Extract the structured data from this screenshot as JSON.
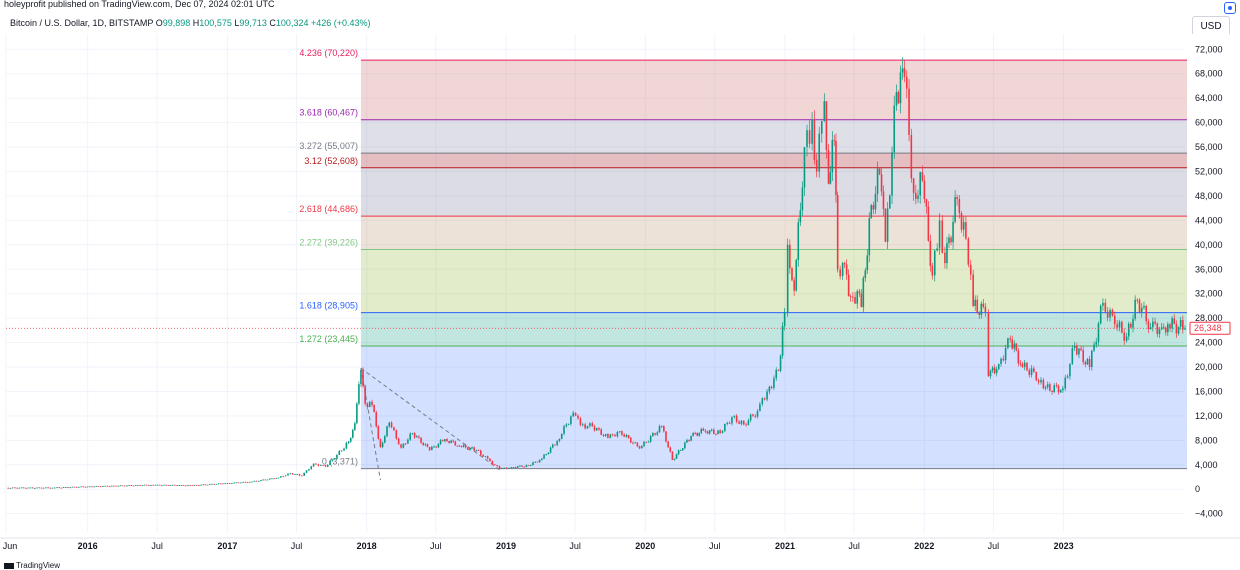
{
  "header": {
    "published": "holeyprofit published on TradingView.com, Dec 07, 2024 02:01 UTC",
    "currency": "USD"
  },
  "legend": {
    "symbol": "Bitcoin / U.S. Dollar, 1D, BITSTAMP",
    "o_label": "O",
    "o": "99,898",
    "h_label": "H",
    "h": "100,575",
    "l_label": "L",
    "l": "99,713",
    "c_label": "C",
    "c": "100,324",
    "change": "+426 (+0.43%)"
  },
  "footer": {
    "brand": "TradingView"
  },
  "colors": {
    "up": "#089981",
    "down": "#f23645",
    "grid": "#f0f3fa",
    "axis_text": "#131722"
  },
  "chart_data": {
    "type": "line",
    "title": "Bitcoin / U.S. Dollar, 1D, BITSTAMP",
    "y_axis": {
      "side": "right",
      "ticks": [
        72000,
        68000,
        64000,
        60000,
        56000,
        52000,
        48000,
        44000,
        40000,
        36000,
        32000,
        28000,
        24000,
        20000,
        16000,
        12000,
        8000,
        4000,
        0,
        -4000
      ],
      "tick_labels": [
        "72,000",
        "68,000",
        "64,000",
        "60,000",
        "56,000",
        "52,000",
        "48,000",
        "44,000",
        "40,000",
        "36,000",
        "32,000",
        "28,000",
        "24,000",
        "20,000",
        "16,000",
        "12,000",
        "8,000",
        "4,000",
        "0",
        "−4,000"
      ],
      "ylim": [
        -7000,
        74500
      ]
    },
    "x_axis": {
      "ticks": [
        "2015-06-01",
        "2016-01-01",
        "2016-07-01",
        "2017-01-01",
        "2017-07-01",
        "2018-01-01",
        "2018-07-01",
        "2019-01-01",
        "2019-07-01",
        "2020-01-01",
        "2020-07-01",
        "2021-01-01",
        "2021-07-01",
        "2022-01-01",
        "2022-07-01",
        "2023-01-01"
      ],
      "tick_labels": [
        "Jun",
        "2016",
        "Jul",
        "2017",
        "Jul",
        "2018",
        "Jul",
        "2019",
        "Jul",
        "2020",
        "Jul",
        "2021",
        "Jul",
        "2022",
        "Jul",
        "2023"
      ],
      "xlim": [
        "2015-06-01",
        "2023-11-15"
      ]
    },
    "last_price": {
      "value": 26348,
      "label": "26,348"
    },
    "fib_levels": [
      {
        "label": "0 (3,371)",
        "value": 3371,
        "color": "#787b86",
        "fill": "rgba(41,98,255,0.20)"
      },
      {
        "label": "1.272 (23,445)",
        "value": 23445,
        "color": "#4caf50",
        "fill": "rgba(8,153,129,0.25)"
      },
      {
        "label": "1.618 (28,905)",
        "value": 28905,
        "color": "#2962ff",
        "fill": "rgba(160,190,80,0.30)"
      },
      {
        "label": "2.272 (39,226)",
        "value": 39226,
        "color": "#81c784",
        "fill": "rgba(190,150,110,0.28)"
      },
      {
        "label": "2.618 (44,686)",
        "value": 44686,
        "color": "#f23645",
        "fill": "rgba(140,140,170,0.30)"
      },
      {
        "label": "3.12 (52,608)",
        "value": 52608,
        "color": "#b71c1c",
        "fill": "rgba(180,70,80,0.35)"
      },
      {
        "label": "3.272 (55,007)",
        "value": 55007,
        "color": "#787b86",
        "fill": "rgba(150,150,180,0.30)"
      },
      {
        "label": "3.618 (60,467)",
        "value": 60467,
        "color": "#9c27b0",
        "fill": "rgba(210,120,120,0.30)"
      },
      {
        "label": "4.236 (70,220)",
        "value": 70220,
        "color": "#e91e63",
        "fill": null
      }
    ],
    "fib_range": {
      "x_start": "2017-12-17",
      "x_end": "2023-11-15"
    },
    "trend_line": {
      "from": {
        "x": "2017-12-17",
        "y": 19800
      },
      "to": {
        "x": "2018-12-15",
        "y": 3200
      }
    },
    "trend_line_2": {
      "from": {
        "x": "2017-12-17",
        "y": 19800
      },
      "to": {
        "x": "2018-02-06",
        "y": 1500
      }
    },
    "series": [
      {
        "values": [
          {
            "x": "2015-06-01",
            "y": 230
          },
          {
            "x": "2015-10-01",
            "y": 240
          },
          {
            "x": "2016-01-01",
            "y": 430
          },
          {
            "x": "2016-06-15",
            "y": 700
          },
          {
            "x": "2016-10-01",
            "y": 620
          },
          {
            "x": "2017-01-01",
            "y": 990
          },
          {
            "x": "2017-03-01",
            "y": 1200
          },
          {
            "x": "2017-05-15",
            "y": 1900
          },
          {
            "x": "2017-06-15",
            "y": 2600
          },
          {
            "x": "2017-07-15",
            "y": 2200
          },
          {
            "x": "2017-08-15",
            "y": 4200
          },
          {
            "x": "2017-09-15",
            "y": 3700
          },
          {
            "x": "2017-10-15",
            "y": 5600
          },
          {
            "x": "2017-11-15",
            "y": 7800
          },
          {
            "x": "2017-12-01",
            "y": 10800
          },
          {
            "x": "2017-12-17",
            "y": 19500
          },
          {
            "x": "2017-12-28",
            "y": 14000
          },
          {
            "x": "2018-01-15",
            "y": 13800
          },
          {
            "x": "2018-02-06",
            "y": 6900
          },
          {
            "x": "2018-03-01",
            "y": 10900
          },
          {
            "x": "2018-04-01",
            "y": 6800
          },
          {
            "x": "2018-05-01",
            "y": 9200
          },
          {
            "x": "2018-06-15",
            "y": 6400
          },
          {
            "x": "2018-07-25",
            "y": 8200
          },
          {
            "x": "2018-09-01",
            "y": 7100
          },
          {
            "x": "2018-10-15",
            "y": 6400
          },
          {
            "x": "2018-11-20",
            "y": 4600
          },
          {
            "x": "2018-12-15",
            "y": 3300
          },
          {
            "x": "2019-01-15",
            "y": 3600
          },
          {
            "x": "2019-03-01",
            "y": 3850
          },
          {
            "x": "2019-04-05",
            "y": 5000
          },
          {
            "x": "2019-05-15",
            "y": 7900
          },
          {
            "x": "2019-06-26",
            "y": 12500
          },
          {
            "x": "2019-07-15",
            "y": 10500
          },
          {
            "x": "2019-08-15",
            "y": 10300
          },
          {
            "x": "2019-09-25",
            "y": 8400
          },
          {
            "x": "2019-10-26",
            "y": 9500
          },
          {
            "x": "2019-12-17",
            "y": 6700
          },
          {
            "x": "2020-02-13",
            "y": 10300
          },
          {
            "x": "2020-03-12",
            "y": 4800
          },
          {
            "x": "2020-04-30",
            "y": 8700
          },
          {
            "x": "2020-06-01",
            "y": 9600
          },
          {
            "x": "2020-07-15",
            "y": 9200
          },
          {
            "x": "2020-08-15",
            "y": 11800
          },
          {
            "x": "2020-09-15",
            "y": 10600
          },
          {
            "x": "2020-10-21",
            "y": 12800
          },
          {
            "x": "2020-11-15",
            "y": 16000
          },
          {
            "x": "2020-12-15",
            "y": 19400
          },
          {
            "x": "2020-12-31",
            "y": 29000
          },
          {
            "x": "2021-01-08",
            "y": 40000
          },
          {
            "x": "2021-01-25",
            "y": 32500
          },
          {
            "x": "2021-02-21",
            "y": 56000
          },
          {
            "x": "2021-03-13",
            "y": 60500
          },
          {
            "x": "2021-03-25",
            "y": 52000
          },
          {
            "x": "2021-04-14",
            "y": 63500
          },
          {
            "x": "2021-04-25",
            "y": 50000
          },
          {
            "x": "2021-05-10",
            "y": 57000
          },
          {
            "x": "2021-05-19",
            "y": 36000
          },
          {
            "x": "2021-06-01",
            "y": 37000
          },
          {
            "x": "2021-06-22",
            "y": 31500
          },
          {
            "x": "2021-07-15",
            "y": 32000
          },
          {
            "x": "2021-07-20",
            "y": 29800
          },
          {
            "x": "2021-08-15",
            "y": 46500
          },
          {
            "x": "2021-09-06",
            "y": 51500
          },
          {
            "x": "2021-09-21",
            "y": 40500
          },
          {
            "x": "2021-10-20",
            "y": 65000
          },
          {
            "x": "2021-11-10",
            "y": 67500
          },
          {
            "x": "2021-12-04",
            "y": 48500
          },
          {
            "x": "2021-12-27",
            "y": 50500
          },
          {
            "x": "2022-01-22",
            "y": 35000
          },
          {
            "x": "2022-02-10",
            "y": 44000
          },
          {
            "x": "2022-02-24",
            "y": 37000
          },
          {
            "x": "2022-03-28",
            "y": 47500
          },
          {
            "x": "2022-04-20",
            "y": 41000
          },
          {
            "x": "2022-05-09",
            "y": 30000
          },
          {
            "x": "2022-06-10",
            "y": 29000
          },
          {
            "x": "2022-06-18",
            "y": 18500
          },
          {
            "x": "2022-07-15",
            "y": 20500
          },
          {
            "x": "2022-08-14",
            "y": 24500
          },
          {
            "x": "2022-09-15",
            "y": 20000
          },
          {
            "x": "2022-10-15",
            "y": 19200
          },
          {
            "x": "2022-11-09",
            "y": 16500
          },
          {
            "x": "2022-12-30",
            "y": 16500
          },
          {
            "x": "2023-01-30",
            "y": 23500
          },
          {
            "x": "2023-03-10",
            "y": 20000
          },
          {
            "x": "2023-04-14",
            "y": 30500
          },
          {
            "x": "2023-05-15",
            "y": 27000
          },
          {
            "x": "2023-06-15",
            "y": 25000
          },
          {
            "x": "2023-07-13",
            "y": 31000
          },
          {
            "x": "2023-08-17",
            "y": 26500
          },
          {
            "x": "2023-09-15",
            "y": 26500
          },
          {
            "x": "2023-10-01",
            "y": 27000
          },
          {
            "x": "2023-11-15",
            "y": 26348
          }
        ]
      }
    ]
  }
}
